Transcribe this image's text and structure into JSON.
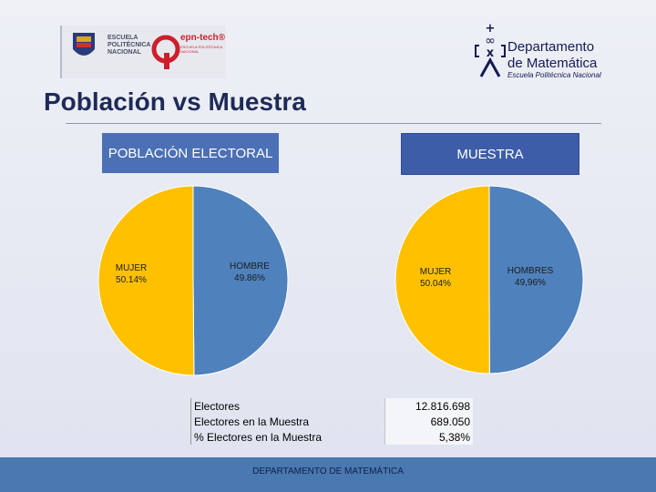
{
  "logos": {
    "epn_text": "ESCUELA POLITÉCNICA NACIONAL",
    "epn_tech": "epn-tech®",
    "epn_tech_sub": "ESCUELA POLITÉCNICA NACIONAL",
    "dept_name_line1": "Departamento",
    "dept_name_line2": "de Matemática",
    "dept_sub": "Escuela Politécnica Nacional"
  },
  "title": "Población vs Muestra",
  "panels": {
    "left_header": "POBLACIÓN ELECTORAL",
    "right_header": "MUESTRA"
  },
  "colors": {
    "mujer": "#ffc000",
    "hombre": "#4f81bd",
    "footer": "#4a78b0"
  },
  "chart_data": [
    {
      "type": "pie",
      "title": "POBLACIÓN ELECTORAL",
      "slices": [
        {
          "label": "MUJER",
          "value_text": "50.14%",
          "value": 50.14,
          "color": "#ffc000"
        },
        {
          "label": "HOMBRE",
          "value_text": "49.86%",
          "value": 49.86,
          "color": "#4f81bd"
        }
      ]
    },
    {
      "type": "pie",
      "title": "MUESTRA",
      "slices": [
        {
          "label": "MUJER",
          "value_text": "50.04%",
          "value": 50.04,
          "color": "#ffc000"
        },
        {
          "label": "HOMBRES",
          "value_text": "49,96%",
          "value": 49.96,
          "color": "#4f81bd"
        }
      ]
    }
  ],
  "stats": [
    {
      "label": "Electores",
      "value": "12.816.698"
    },
    {
      "label": "Electores en la Muestra",
      "value": "689.050"
    },
    {
      "label": "% Electores en la Muestra",
      "value": "5,38%"
    }
  ],
  "footer": "DEPARTAMENTO DE MATEMÁTICA"
}
